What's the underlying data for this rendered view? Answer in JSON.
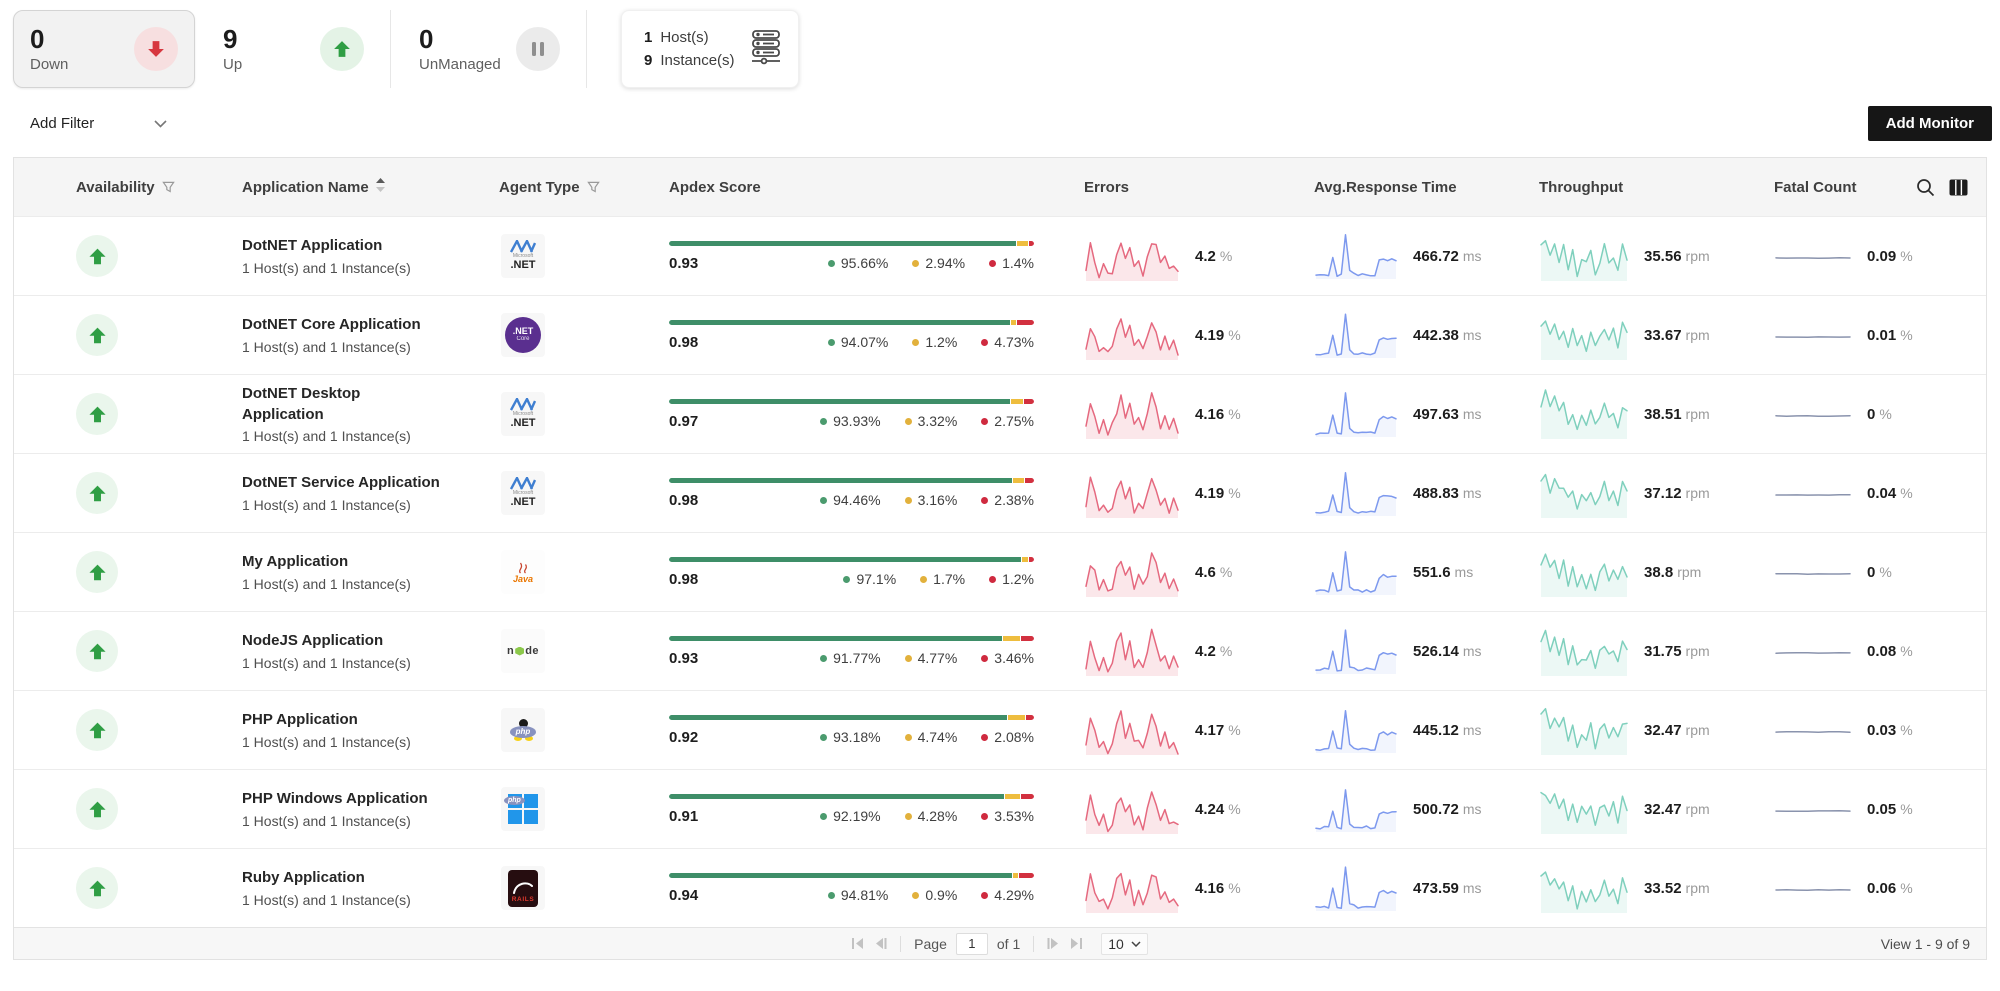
{
  "summary": {
    "down": {
      "count": "0",
      "label": "Down"
    },
    "up": {
      "count": "9",
      "label": "Up"
    },
    "unmanaged": {
      "count": "0",
      "label": "UnManaged"
    },
    "hosts": {
      "host_count": "1",
      "host_label": "Host(s)",
      "instance_count": "9",
      "instance_label": "Instance(s)"
    }
  },
  "toolbar": {
    "add_filter": "Add Filter",
    "add_monitor": "Add Monitor"
  },
  "table": {
    "headers": {
      "availability": "Availability",
      "application_name": "Application Name",
      "agent_type": "Agent Type",
      "apdex_score": "Apdex Score",
      "errors": "Errors",
      "avg_response_time": "Avg.Response Time",
      "throughput": "Throughput",
      "fatal_count": "Fatal Count"
    },
    "rows": [
      {
        "name": "DotNET Application",
        "subtitle": "1 Host(s) and 1 Instance(s)",
        "agent": "dotnet",
        "availability": "up",
        "apdex": {
          "score": "0.93",
          "good": "95.66%",
          "fair": "2.94%",
          "poor": "1.4%"
        },
        "errors": {
          "value": "4.2",
          "unit": "%"
        },
        "response": {
          "value": "466.72",
          "unit": "ms"
        },
        "throughput": {
          "value": "35.56",
          "unit": "rpm"
        },
        "fatal": {
          "value": "0.09",
          "unit": "%"
        }
      },
      {
        "name": "DotNET Core Application",
        "subtitle": "1 Host(s) and 1 Instance(s)",
        "agent": "dotnetcore",
        "availability": "up",
        "apdex": {
          "score": "0.98",
          "good": "94.07%",
          "fair": "1.2%",
          "poor": "4.73%"
        },
        "errors": {
          "value": "4.19",
          "unit": "%"
        },
        "response": {
          "value": "442.38",
          "unit": "ms"
        },
        "throughput": {
          "value": "33.67",
          "unit": "rpm"
        },
        "fatal": {
          "value": "0.01",
          "unit": "%"
        }
      },
      {
        "name": "DotNET Desktop Application",
        "subtitle": "1 Host(s) and 1 Instance(s)",
        "agent": "dotnet",
        "availability": "up",
        "name_wrap": true,
        "apdex": {
          "score": "0.97",
          "good": "93.93%",
          "fair": "3.32%",
          "poor": "2.75%"
        },
        "errors": {
          "value": "4.16",
          "unit": "%"
        },
        "response": {
          "value": "497.63",
          "unit": "ms"
        },
        "throughput": {
          "value": "38.51",
          "unit": "rpm"
        },
        "fatal": {
          "value": "0",
          "unit": "%"
        }
      },
      {
        "name": "DotNET Service Application",
        "subtitle": "1 Host(s) and 1 Instance(s)",
        "agent": "dotnet",
        "availability": "up",
        "apdex": {
          "score": "0.98",
          "good": "94.46%",
          "fair": "3.16%",
          "poor": "2.38%"
        },
        "errors": {
          "value": "4.19",
          "unit": "%"
        },
        "response": {
          "value": "488.83",
          "unit": "ms"
        },
        "throughput": {
          "value": "37.12",
          "unit": "rpm"
        },
        "fatal": {
          "value": "0.04",
          "unit": "%"
        }
      },
      {
        "name": "My Application",
        "subtitle": "1 Host(s) and 1 Instance(s)",
        "agent": "java",
        "availability": "up",
        "apdex": {
          "score": "0.98",
          "good": "97.1%",
          "fair": "1.7%",
          "poor": "1.2%"
        },
        "errors": {
          "value": "4.6",
          "unit": "%"
        },
        "response": {
          "value": "551.6",
          "unit": "ms"
        },
        "throughput": {
          "value": "38.8",
          "unit": "rpm"
        },
        "fatal": {
          "value": "0",
          "unit": "%"
        }
      },
      {
        "name": "NodeJS Application",
        "subtitle": "1 Host(s) and 1 Instance(s)",
        "agent": "node",
        "availability": "up",
        "apdex": {
          "score": "0.93",
          "good": "91.77%",
          "fair": "4.77%",
          "poor": "3.46%"
        },
        "errors": {
          "value": "4.2",
          "unit": "%"
        },
        "response": {
          "value": "526.14",
          "unit": "ms"
        },
        "throughput": {
          "value": "31.75",
          "unit": "rpm"
        },
        "fatal": {
          "value": "0.08",
          "unit": "%"
        }
      },
      {
        "name": "PHP Application",
        "subtitle": "1 Host(s) and 1 Instance(s)",
        "agent": "php",
        "availability": "up",
        "apdex": {
          "score": "0.92",
          "good": "93.18%",
          "fair": "4.74%",
          "poor": "2.08%"
        },
        "errors": {
          "value": "4.17",
          "unit": "%"
        },
        "response": {
          "value": "445.12",
          "unit": "ms"
        },
        "throughput": {
          "value": "32.47",
          "unit": "rpm"
        },
        "fatal": {
          "value": "0.03",
          "unit": "%"
        }
      },
      {
        "name": "PHP Windows Application",
        "subtitle": "1 Host(s) and 1 Instance(s)",
        "agent": "phpwin",
        "availability": "up",
        "apdex": {
          "score": "0.91",
          "good": "92.19%",
          "fair": "4.28%",
          "poor": "3.53%"
        },
        "errors": {
          "value": "4.24",
          "unit": "%"
        },
        "response": {
          "value": "500.72",
          "unit": "ms"
        },
        "throughput": {
          "value": "32.47",
          "unit": "rpm"
        },
        "fatal": {
          "value": "0.05",
          "unit": "%"
        }
      },
      {
        "name": "Ruby Application",
        "subtitle": "1 Host(s) and 1 Instance(s)",
        "agent": "rails",
        "availability": "up",
        "apdex": {
          "score": "0.94",
          "good": "94.81%",
          "fair": "0.9%",
          "poor": "4.29%"
        },
        "errors": {
          "value": "4.16",
          "unit": "%"
        },
        "response": {
          "value": "473.59",
          "unit": "ms"
        },
        "throughput": {
          "value": "33.52",
          "unit": "rpm"
        },
        "fatal": {
          "value": "0.06",
          "unit": "%"
        }
      }
    ]
  },
  "pagination": {
    "page_label": "Page",
    "page_value": "1",
    "of_label": "of 1",
    "page_size": "10",
    "view_summary": "View 1 - 9 of 9"
  },
  "colors": {
    "status_up": "#2f9e44",
    "status_down": "#d7373f",
    "status_unmanaged": "#8f8f8f",
    "apdex_good": "#3e8e68",
    "apdex_fair": "#eebd3e",
    "apdex_poor": "#d2303f",
    "spark_errors": "#e5697f",
    "spark_response": "#7d99ee",
    "spark_throughput": "#7fd0bd",
    "spark_fatal": "#8a93ad",
    "add_monitor_bg": "#161616"
  }
}
